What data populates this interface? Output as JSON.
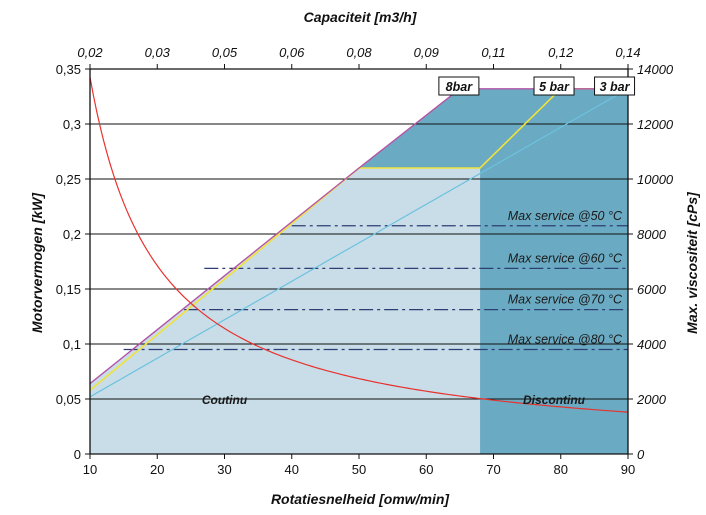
{
  "chart_data": {
    "type": "area",
    "title": "",
    "top_axis": {
      "label": "Capaciteit [m3/h]",
      "ticks": [
        "0,02",
        "0,03",
        "0,05",
        "0,06",
        "0,08",
        "0,09",
        "0,11",
        "0,12",
        "0,14"
      ]
    },
    "x_axis": {
      "label": "Rotatiesnelheid [omw/min]",
      "range": [
        10,
        90
      ],
      "ticks": [
        10,
        20,
        30,
        40,
        50,
        60,
        70,
        80,
        90
      ]
    },
    "y_left": {
      "label": "Motorvermogen [kW]",
      "range": [
        0,
        0.35
      ],
      "ticks": [
        0,
        0.05,
        0.1,
        0.15,
        0.2,
        0.25,
        0.3,
        0.35
      ],
      "tick_labels": [
        "0",
        "0,05",
        "0,1",
        "0,15",
        "0,2",
        "0,25",
        "0,3",
        "0,35"
      ]
    },
    "y_right": {
      "label": "Max. viscositeit [cPs]",
      "range": [
        0,
        14000
      ],
      "ticks": [
        0,
        2000,
        4000,
        6000,
        8000,
        10000,
        12000,
        14000
      ]
    },
    "grid": "horizontal",
    "regions": [
      {
        "label": "Coutinu",
        "x_range": [
          10,
          68
        ],
        "color": "#c8dde8"
      },
      {
        "label": "Discontinu",
        "x_range": [
          68,
          90
        ],
        "color": "#6aaac2"
      }
    ],
    "series": [
      {
        "name": "8bar",
        "axis": "left",
        "color": "#b455a8",
        "x": [
          10,
          50,
          65,
          90
        ],
        "y": [
          0.064,
          0.26,
          0.332,
          0.332
        ]
      },
      {
        "name": "5 bar",
        "axis": "left",
        "color": "#f0e23a",
        "x": [
          10,
          50,
          68,
          68,
          80,
          90
        ],
        "y": [
          0.058,
          0.26,
          0.26,
          0.26,
          0.332,
          0.332
        ]
      },
      {
        "name": "3 bar",
        "axis": "left",
        "color": "#6cc2de",
        "x": [
          10,
          90
        ],
        "y": [
          0.052,
          0.332
        ]
      },
      {
        "name": "Max. viscositeit",
        "axis": "right",
        "color": "#e8322d",
        "x": [
          10,
          12,
          15,
          20,
          25,
          30,
          40,
          50,
          60,
          70,
          80,
          90
        ],
        "y": [
          13700,
          10300,
          7350,
          5030,
          3840,
          3090,
          2300,
          1780,
          1450,
          1200,
          1010,
          860
        ]
      }
    ],
    "reference_lines": [
      {
        "label": "Max service @50 °C",
        "axis": "right",
        "value": 8300,
        "x_start": 40
      },
      {
        "label": "Max service @60 °C",
        "axis": "right",
        "value": 6750,
        "x_start": 27
      },
      {
        "label": "Max service @70 °C",
        "axis": "right",
        "value": 5250,
        "x_start": 24
      },
      {
        "label": "Max service @80 °C",
        "axis": "right",
        "value": 3800,
        "x_start": 15
      }
    ],
    "pressure_labels": [
      "8bar",
      "5 bar",
      "3 bar"
    ]
  }
}
